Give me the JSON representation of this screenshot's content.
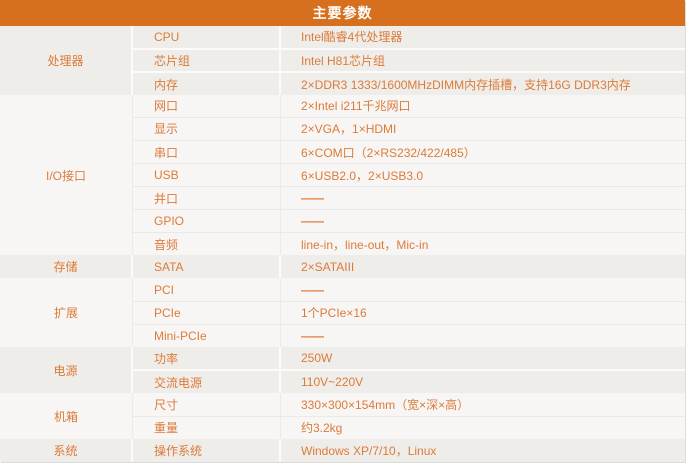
{
  "header": {
    "title": "主要参数"
  },
  "colors": {
    "header_bg": "#d6701f",
    "header_text": "#ffffff",
    "section_tint_bg": "#efedea",
    "section_light_bg": "#f7f6f5",
    "text_orange": "#dc7b38"
  },
  "dash_placeholder": "——",
  "table": {
    "sections": [
      {
        "category": "处理器",
        "rows": [
          {
            "label": "CPU",
            "value": "Intel酷睿4代处理器"
          },
          {
            "label": "芯片组",
            "value": "Intel H81芯片组"
          },
          {
            "label": "内存",
            "value": "2×DDR3 1333/1600MHzDIMM内存插槽，支持16G DDR3内存"
          }
        ]
      },
      {
        "category": "I/O接口",
        "rows": [
          {
            "label": "网口",
            "value": "2×Intel i211千兆网口"
          },
          {
            "label": "显示",
            "value": "2×VGA，1×HDMI"
          },
          {
            "label": "串口",
            "value": "6×COM口（2×RS232/422/485）"
          },
          {
            "label": "USB",
            "value": "6×USB2.0，2×USB3.0"
          },
          {
            "label": "并口",
            "value": "——"
          },
          {
            "label": "GPIO",
            "value": "——"
          },
          {
            "label": "音频",
            "value": "line-in，line-out，Mic-in"
          }
        ]
      },
      {
        "category": "存储",
        "rows": [
          {
            "label": "SATA",
            "value": "2×SATAIII"
          }
        ]
      },
      {
        "category": "扩展",
        "rows": [
          {
            "label": "PCI",
            "value": "——"
          },
          {
            "label": "PCIe",
            "value": "1个PCIe×16"
          },
          {
            "label": "Mini-PCIe",
            "value": "——"
          }
        ]
      },
      {
        "category": "电源",
        "rows": [
          {
            "label": "功率",
            "value": "250W"
          },
          {
            "label": "交流电源",
            "value": "110V~220V"
          }
        ]
      },
      {
        "category": "机箱",
        "rows": [
          {
            "label": "尺寸",
            "value": "330×300×154mm（宽×深×高）"
          },
          {
            "label": "重量",
            "value": "约3.2kg"
          }
        ]
      },
      {
        "category": "系统",
        "rows": [
          {
            "label": "操作系统",
            "value": "Windows XP/7/10，Linux"
          }
        ]
      }
    ]
  }
}
